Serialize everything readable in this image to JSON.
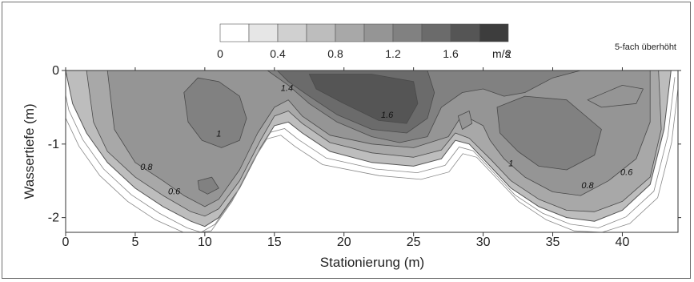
{
  "chart_data": {
    "type": "heatmap",
    "title": "",
    "xlabel": "Stationierung (m)",
    "ylabel": "Wassertiefe (m)",
    "xlim": [
      0,
      44
    ],
    "ylim": [
      -2.2,
      0
    ],
    "x_ticks": [
      "0",
      "5",
      "10",
      "15",
      "20",
      "25",
      "30",
      "35",
      "40"
    ],
    "y_ticks": [
      "0",
      "-1",
      "-2"
    ],
    "note": "5-fach überhöht",
    "colorbar": {
      "levels": [
        0,
        0.2,
        0.4,
        0.6,
        0.8,
        1.0,
        1.2,
        1.4,
        1.6,
        1.8,
        2.0
      ],
      "tick_labels": [
        "0",
        "0.4",
        "0.8",
        "1.2",
        "1.6",
        "2"
      ],
      "unit": "m/s",
      "colors": [
        "#ffffff",
        "#e6e6e6",
        "#d0d0d0",
        "#bdbdbd",
        "#a8a8a8",
        "#959595",
        "#818181",
        "#6b6b6b",
        "#555555",
        "#3d3d3d"
      ]
    },
    "contour_labels": [
      {
        "text": "1.4",
        "x": 15.9,
        "y": -0.28
      },
      {
        "text": "1.6",
        "x": 23.1,
        "y": -0.64
      },
      {
        "text": "1",
        "x": 11.0,
        "y": -0.9
      },
      {
        "text": "0.8",
        "x": 5.8,
        "y": -1.35
      },
      {
        "text": "0.6",
        "x": 7.8,
        "y": -1.68
      },
      {
        "text": "1",
        "x": 32.0,
        "y": -1.3
      },
      {
        "text": "0.8",
        "x": 37.5,
        "y": -1.6
      },
      {
        "text": "0.6",
        "x": 40.3,
        "y": -1.42
      }
    ],
    "bed_profile": [
      [
        0,
        0
      ],
      [
        0.5,
        -0.45
      ],
      [
        1.5,
        -0.85
      ],
      [
        3,
        -1.25
      ],
      [
        5,
        -1.6
      ],
      [
        7,
        -1.85
      ],
      [
        9,
        -2.05
      ],
      [
        10,
        -2.12
      ],
      [
        11,
        -2.0
      ],
      [
        12.5,
        -1.6
      ],
      [
        14,
        -1.05
      ],
      [
        15,
        -0.75
      ],
      [
        16,
        -0.7
      ],
      [
        17,
        -0.85
      ],
      [
        19,
        -1.1
      ],
      [
        22,
        -1.25
      ],
      [
        25,
        -1.3
      ],
      [
        27,
        -1.2
      ],
      [
        28,
        -0.95
      ],
      [
        29,
        -1.0
      ],
      [
        30.5,
        -1.3
      ],
      [
        32,
        -1.6
      ],
      [
        34,
        -1.85
      ],
      [
        36,
        -2.0
      ],
      [
        38,
        -2.05
      ],
      [
        40,
        -1.9
      ],
      [
        42,
        -1.55
      ],
      [
        43,
        -0.8
      ],
      [
        43.5,
        0
      ]
    ],
    "zones": [
      {
        "level": 0.8,
        "points": [
          [
            1.5,
            0
          ],
          [
            42.6,
            0
          ],
          [
            42.8,
            -0.8
          ],
          [
            42,
            -1.45
          ],
          [
            40,
            -1.78
          ],
          [
            38,
            -1.92
          ],
          [
            36,
            -1.9
          ],
          [
            34,
            -1.75
          ],
          [
            32,
            -1.5
          ],
          [
            30.5,
            -1.2
          ],
          [
            29,
            -0.92
          ],
          [
            28,
            -0.85
          ],
          [
            27,
            -1.08
          ],
          [
            25,
            -1.18
          ],
          [
            22,
            -1.12
          ],
          [
            19,
            -0.98
          ],
          [
            17,
            -0.72
          ],
          [
            16,
            -0.55
          ],
          [
            15,
            -0.62
          ],
          [
            14,
            -0.95
          ],
          [
            12.5,
            -1.5
          ],
          [
            11,
            -1.88
          ],
          [
            10,
            -1.98
          ],
          [
            9,
            -1.92
          ],
          [
            7,
            -1.7
          ],
          [
            5,
            -1.45
          ],
          [
            3,
            -1.1
          ],
          [
            2,
            -0.7
          ]
        ]
      },
      {
        "level": 1.0,
        "points": [
          [
            3,
            0
          ],
          [
            42,
            0
          ],
          [
            42,
            -0.7
          ],
          [
            41,
            -1.2
          ],
          [
            39,
            -1.5
          ],
          [
            37,
            -1.7
          ],
          [
            35,
            -1.65
          ],
          [
            33,
            -1.45
          ],
          [
            31.5,
            -1.2
          ],
          [
            30.5,
            -0.95
          ],
          [
            30,
            -0.75
          ],
          [
            28.5,
            -0.6
          ],
          [
            27.5,
            -0.9
          ],
          [
            25,
            -1.05
          ],
          [
            22,
            -1.0
          ],
          [
            19,
            -0.88
          ],
          [
            17,
            -0.62
          ],
          [
            16,
            -0.4
          ],
          [
            15,
            -0.5
          ],
          [
            13.8,
            -0.85
          ],
          [
            12.5,
            -1.35
          ],
          [
            11,
            -1.75
          ],
          [
            10,
            -1.85
          ],
          [
            8.5,
            -1.7
          ],
          [
            7,
            -1.5
          ],
          [
            5,
            -1.25
          ],
          [
            3.5,
            -0.8
          ]
        ]
      },
      {
        "level": 1.2,
        "points": [
          [
            8.5,
            -0.3
          ],
          [
            9.5,
            -0.1
          ],
          [
            11,
            -0.15
          ],
          [
            12.5,
            -0.35
          ],
          [
            13,
            -0.65
          ],
          [
            12.5,
            -0.95
          ],
          [
            11.2,
            -1.05
          ],
          [
            9.8,
            -0.95
          ],
          [
            8.8,
            -0.7
          ]
        ]
      },
      {
        "level": 1.2,
        "points": [
          [
            9.5,
            -1.5
          ],
          [
            10.5,
            -1.45
          ],
          [
            11,
            -1.6
          ],
          [
            10.2,
            -1.68
          ],
          [
            9.6,
            -1.62
          ]
        ]
      },
      {
        "level": 1.2,
        "points": [
          [
            14.5,
            0
          ],
          [
            37,
            0
          ],
          [
            35,
            -0.1
          ],
          [
            33,
            -0.3
          ],
          [
            31.5,
            -0.35
          ],
          [
            30,
            -0.25
          ],
          [
            28.5,
            -0.3
          ],
          [
            27,
            -0.5
          ],
          [
            26,
            -0.9
          ],
          [
            24,
            -0.98
          ],
          [
            22,
            -0.9
          ],
          [
            19.5,
            -0.7
          ],
          [
            17.5,
            -0.45
          ],
          [
            16,
            -0.2
          ]
        ]
      },
      {
        "level": 1.2,
        "points": [
          [
            31,
            -0.5
          ],
          [
            33,
            -0.35
          ],
          [
            36,
            -0.4
          ],
          [
            38.5,
            -0.8
          ],
          [
            38,
            -1.15
          ],
          [
            36,
            -1.35
          ],
          [
            34,
            -1.3
          ],
          [
            32.5,
            -1.1
          ],
          [
            31.2,
            -0.85
          ]
        ]
      },
      {
        "level": 1.4,
        "points": [
          [
            15.2,
            0
          ],
          [
            26,
            0
          ],
          [
            26.5,
            -0.3
          ],
          [
            26,
            -0.65
          ],
          [
            24.5,
            -0.85
          ],
          [
            22,
            -0.8
          ],
          [
            19.5,
            -0.6
          ],
          [
            17.5,
            -0.35
          ],
          [
            16,
            -0.15
          ]
        ]
      },
      {
        "level": 1.6,
        "points": [
          [
            17.5,
            -0.05
          ],
          [
            22,
            -0.05
          ],
          [
            25,
            -0.15
          ],
          [
            25.3,
            -0.45
          ],
          [
            24.5,
            -0.72
          ],
          [
            22.5,
            -0.68
          ],
          [
            20,
            -0.45
          ],
          [
            18,
            -0.25
          ]
        ]
      },
      {
        "level": 1.0,
        "points": [
          [
            37.5,
            -0.4
          ],
          [
            40,
            -0.2
          ],
          [
            41.5,
            -0.25
          ],
          [
            41,
            -0.45
          ],
          [
            38.5,
            -0.5
          ]
        ]
      },
      {
        "level": 1.0,
        "points": [
          [
            28.2,
            -0.62
          ],
          [
            29,
            -0.55
          ],
          [
            29.2,
            -0.72
          ],
          [
            28.5,
            -0.8
          ]
        ]
      }
    ]
  }
}
